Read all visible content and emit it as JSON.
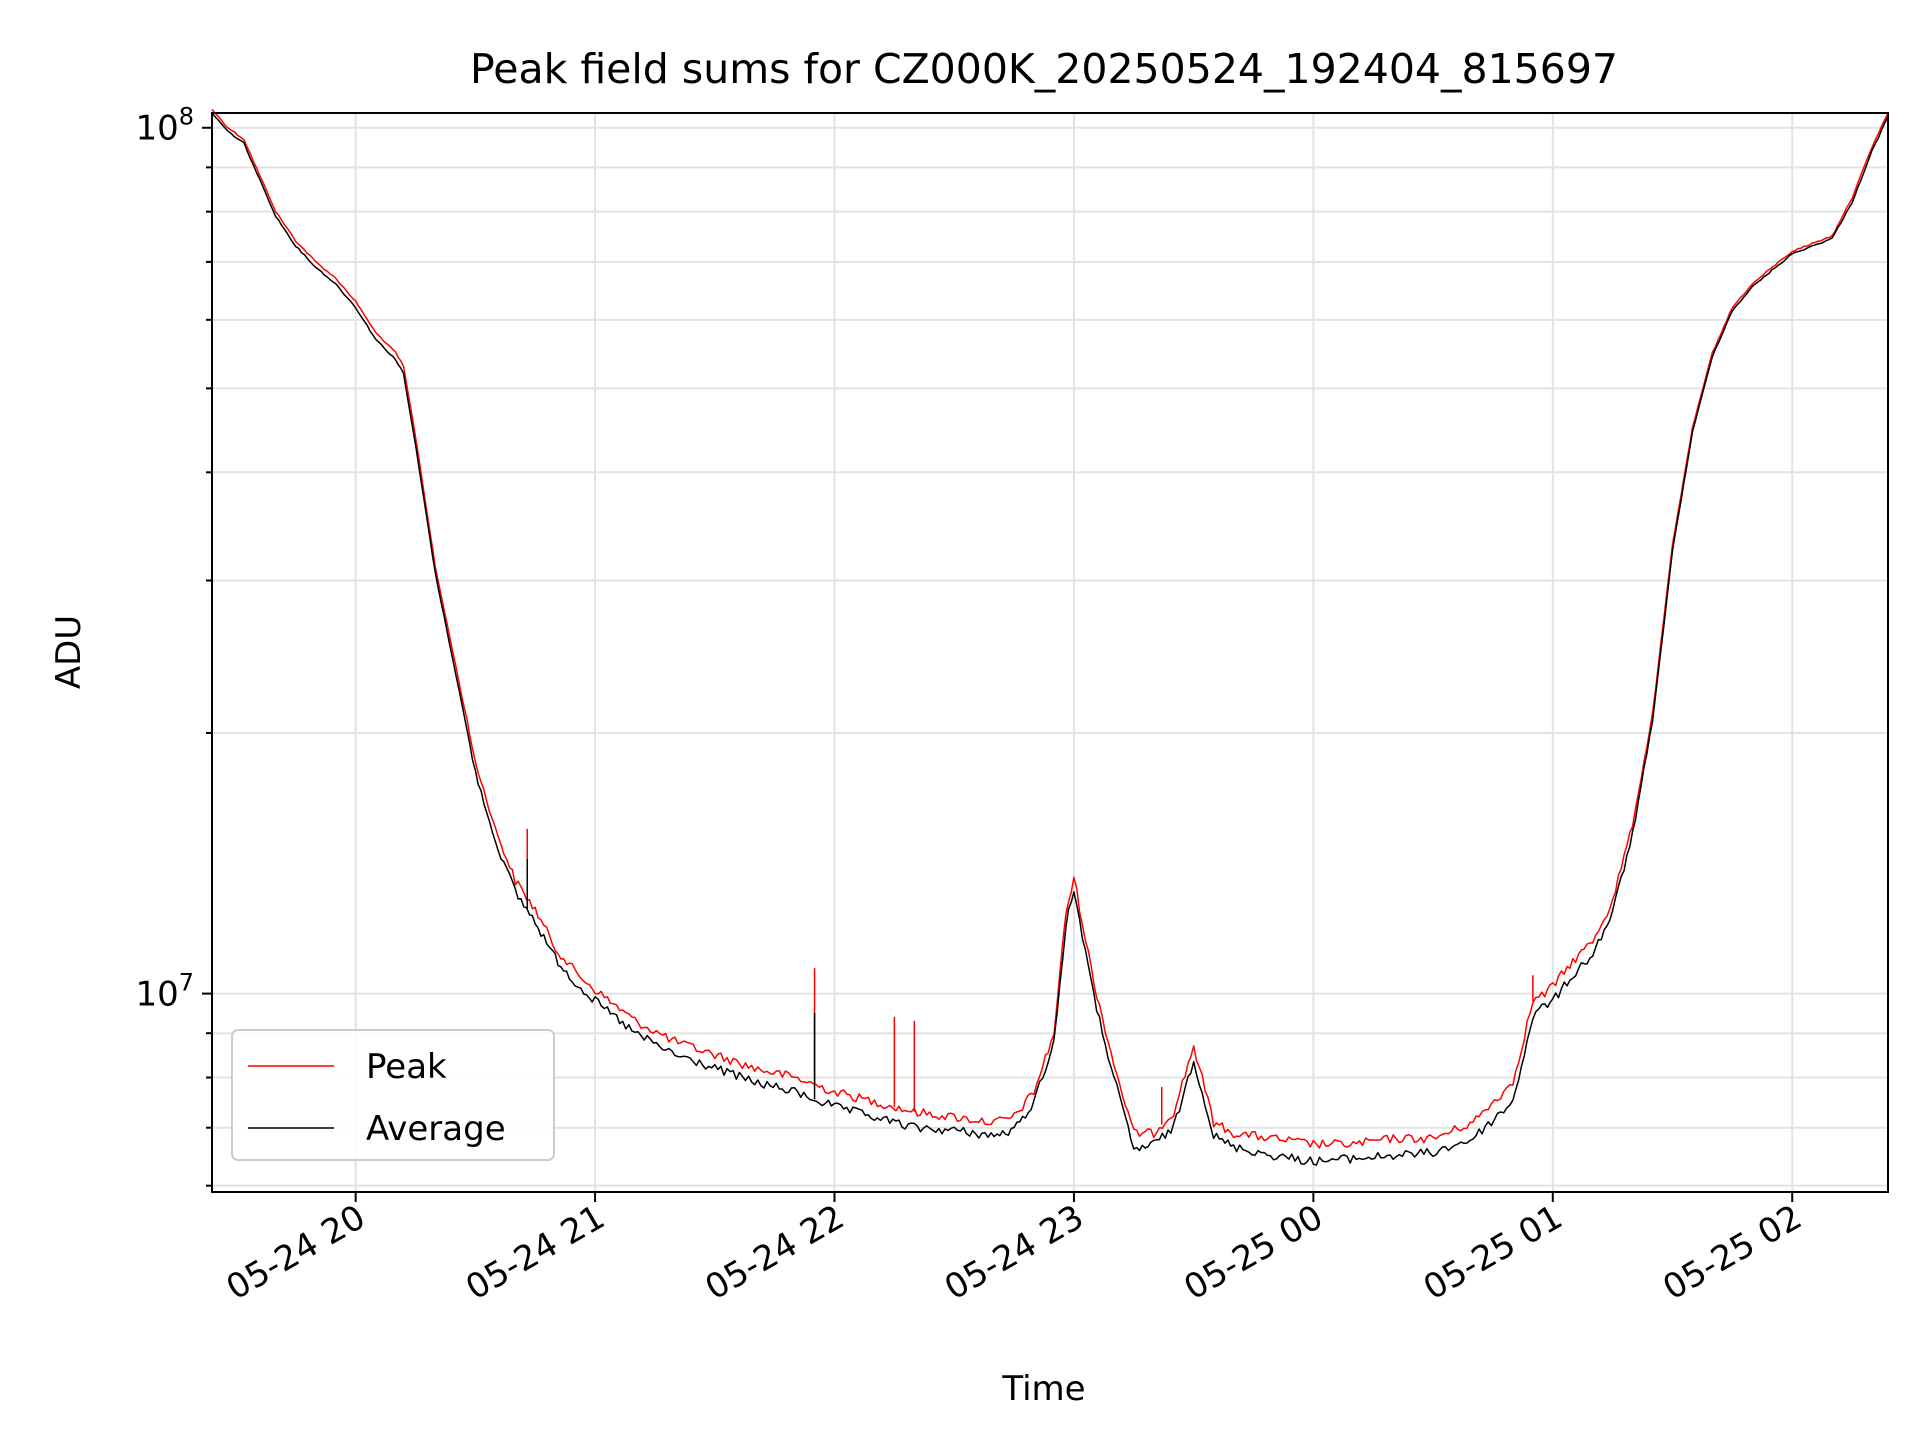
{
  "chart_data": {
    "type": "line",
    "title": "Peak field sums for CZ000K_20250524_192404_815697",
    "xlabel": "Time",
    "ylabel": "ADU",
    "yscale": "log",
    "xlim": [
      "05-24 19:24",
      "05-25 02:24"
    ],
    "ylim": [
      5900000,
      104000000
    ],
    "grid": true,
    "legend": "lower-left",
    "x_ticks": [
      "05-24 20",
      "05-24 21",
      "05-24 22",
      "05-24 23",
      "05-25 00",
      "05-25 01",
      "05-25 02"
    ],
    "y_major_ticks": [
      {
        "value": 10000000,
        "base": "10",
        "exp": "7"
      },
      {
        "value": 100000000,
        "base": "10",
        "exp": "8"
      }
    ],
    "x": [
      "05-24 19:24",
      "05-24 19:28",
      "05-24 19:32",
      "05-24 19:36",
      "05-24 19:40",
      "05-24 19:45",
      "05-24 19:50",
      "05-24 19:55",
      "05-24 20:00",
      "05-24 20:05",
      "05-24 20:10",
      "05-24 20:12",
      "05-24 20:15",
      "05-24 20:20",
      "05-24 20:25",
      "05-24 20:30",
      "05-24 20:35",
      "05-24 20:40",
      "05-24 20:45",
      "05-24 20:50",
      "05-24 20:55",
      "05-24 21:00",
      "05-24 21:10",
      "05-24 21:20",
      "05-24 21:30",
      "05-24 21:40",
      "05-24 21:50",
      "05-24 22:00",
      "05-24 22:10",
      "05-24 22:20",
      "05-24 22:30",
      "05-24 22:40",
      "05-24 22:45",
      "05-24 22:50",
      "05-24 22:55",
      "05-24 22:58",
      "05-24 23:00",
      "05-24 23:05",
      "05-24 23:10",
      "05-24 23:15",
      "05-24 23:20",
      "05-24 23:25",
      "05-24 23:30",
      "05-24 23:35",
      "05-24 23:40",
      "05-24 23:50",
      "05-25 00:00",
      "05-25 00:10",
      "05-25 00:20",
      "05-25 00:30",
      "05-25 00:40",
      "05-25 00:50",
      "05-25 00:55",
      "05-25 00:58",
      "05-25 01:00",
      "05-25 01:05",
      "05-25 01:10",
      "05-25 01:15",
      "05-25 01:20",
      "05-25 01:25",
      "05-25 01:30",
      "05-25 01:35",
      "05-25 01:40",
      "05-25 01:45",
      "05-25 01:50",
      "05-25 01:55",
      "05-25 02:00",
      "05-25 02:05",
      "05-25 02:10",
      "05-25 02:15",
      "05-25 02:20",
      "05-25 02:24"
    ],
    "series": [
      {
        "name": "Peak",
        "color": "#ff0000",
        "values": [
          105000000,
          100000000,
          97000000,
          88000000,
          80000000,
          74000000,
          70000000,
          67000000,
          63000000,
          58000000,
          55000000,
          53000000,
          44000000,
          31000000,
          24000000,
          18500000,
          15500000,
          13500000,
          12500000,
          11300000,
          10600000,
          10100000,
          9300000,
          8800000,
          8500000,
          8200000,
          8000000,
          7700000,
          7500000,
          7300000,
          7200000,
          7100000,
          7200000,
          7700000,
          9000000,
          12400000,
          13600000,
          10300000,
          8300000,
          6900000,
          6900000,
          7300000,
          8700000,
          7100000,
          6900000,
          6800000,
          6700000,
          6700000,
          6800000,
          6800000,
          7100000,
          7900000,
          9800000,
          10000000,
          10200000,
          10900000,
          11500000,
          12800000,
          15700000,
          21000000,
          33000000,
          45000000,
          55000000,
          62000000,
          66000000,
          69000000,
          72000000,
          73500000,
          75000000,
          83000000,
          95000000,
          104000000
        ]
      },
      {
        "name": "Average",
        "color": "#000000",
        "values": [
          104000000,
          99000000,
          96000000,
          87000000,
          79000000,
          73000000,
          69000000,
          66000000,
          62000000,
          57000000,
          54000000,
          52000000,
          43000000,
          30500000,
          23500000,
          18000000,
          15000000,
          13100000,
          12100000,
          11000000,
          10300000,
          9800000,
          9000000,
          8500000,
          8200000,
          7900000,
          7700000,
          7400000,
          7200000,
          7000000,
          6950000,
          6850000,
          6950000,
          7500000,
          8800000,
          12000000,
          13200000,
          9900000,
          8000000,
          6600000,
          6700000,
          7000000,
          8400000,
          6850000,
          6650000,
          6500000,
          6400000,
          6450000,
          6500000,
          6550000,
          6800000,
          7500000,
          9400000,
          9700000,
          9800000,
          10500000,
          11100000,
          12400000,
          15300000,
          20600000,
          32500000,
          44500000,
          54500000,
          61500000,
          65500000,
          68500000,
          71500000,
          73000000,
          74500000,
          82000000,
          94000000,
          103000000
        ]
      }
    ],
    "spikes": {
      "Peak": [
        [
          "05-24 20:43",
          15500000
        ],
        [
          "05-24 21:55",
          10700000
        ],
        [
          "05-24 22:15",
          9400000
        ],
        [
          "05-24 22:20",
          9300000
        ],
        [
          "05-24 23:22",
          7800000
        ],
        [
          "05-25 00:55",
          10500000
        ]
      ],
      "Average": [
        [
          "05-24 20:43",
          14300000
        ],
        [
          "05-24 21:55",
          9500000
        ]
      ]
    }
  }
}
